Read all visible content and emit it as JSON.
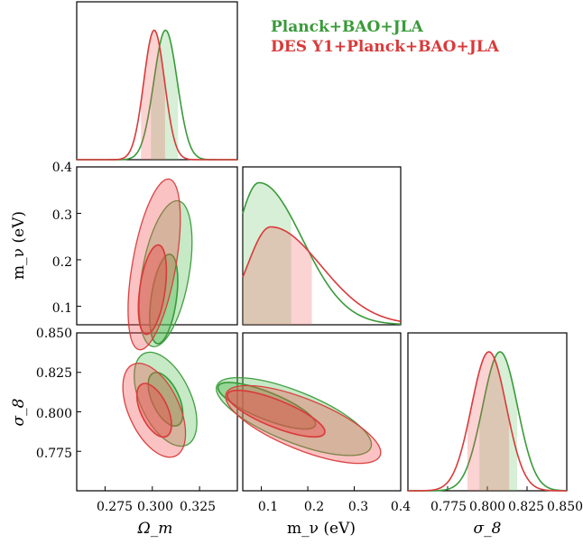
{
  "chart_data": {
    "type": "triangle-corner-plot",
    "parameters": [
      "Omega_m",
      "m_nu",
      "sigma_8"
    ],
    "axis_labels": {
      "Omega_m": "Ω_m",
      "m_nu_y": "m_ν (eV)",
      "m_nu_x": "m_ν (eV)",
      "sigma_8_y": "σ_8",
      "sigma_8_x": "σ_8"
    },
    "ranges": {
      "Omega_m": [
        0.26,
        0.345
      ],
      "m_nu": [
        0.06,
        0.4
      ],
      "sigma_8": [
        0.75,
        0.85
      ]
    },
    "ticks": {
      "Omega_m": [
        "0.275",
        "0.300",
        "0.325"
      ],
      "m_nu_y": [
        "0.1",
        "0.2",
        "0.3",
        "0.4"
      ],
      "m_nu_x": [
        "0.1",
        "0.2",
        "0.3",
        "0.4"
      ],
      "sigma_8_y": [
        "0.775",
        "0.800",
        "0.825",
        "0.850"
      ],
      "sigma_8_x": [
        "0.775",
        "0.800",
        "0.825",
        "0.850"
      ]
    },
    "legend_position": "top-right",
    "series": [
      {
        "name": "Planck+BAO+JLA",
        "color": "#3a9a3a",
        "fill": "#5cbf5c",
        "Omega_m": {
          "mean": 0.307,
          "sigma": 0.0062,
          "interval_68": [
            0.299,
            0.314
          ]
        },
        "m_nu": {
          "peak": 0.095,
          "interval_68": [
            0.06,
            0.165
          ]
        },
        "sigma_8": {
          "mean": 0.808,
          "sigma": 0.011,
          "interval_68": [
            0.795,
            0.819
          ]
        }
      },
      {
        "name": "DES Y1+Planck+BAO+JLA",
        "color": "#d93a3a",
        "fill": "#f05050",
        "Omega_m": {
          "mean": 0.301,
          "sigma": 0.0055,
          "interval_68": [
            0.294,
            0.307
          ]
        },
        "m_nu": {
          "peak": 0.12,
          "interval_68": [
            0.06,
            0.21
          ]
        },
        "sigma_8": {
          "mean": 0.801,
          "sigma": 0.011,
          "interval_68": [
            0.787,
            0.814
          ]
        }
      }
    ]
  }
}
